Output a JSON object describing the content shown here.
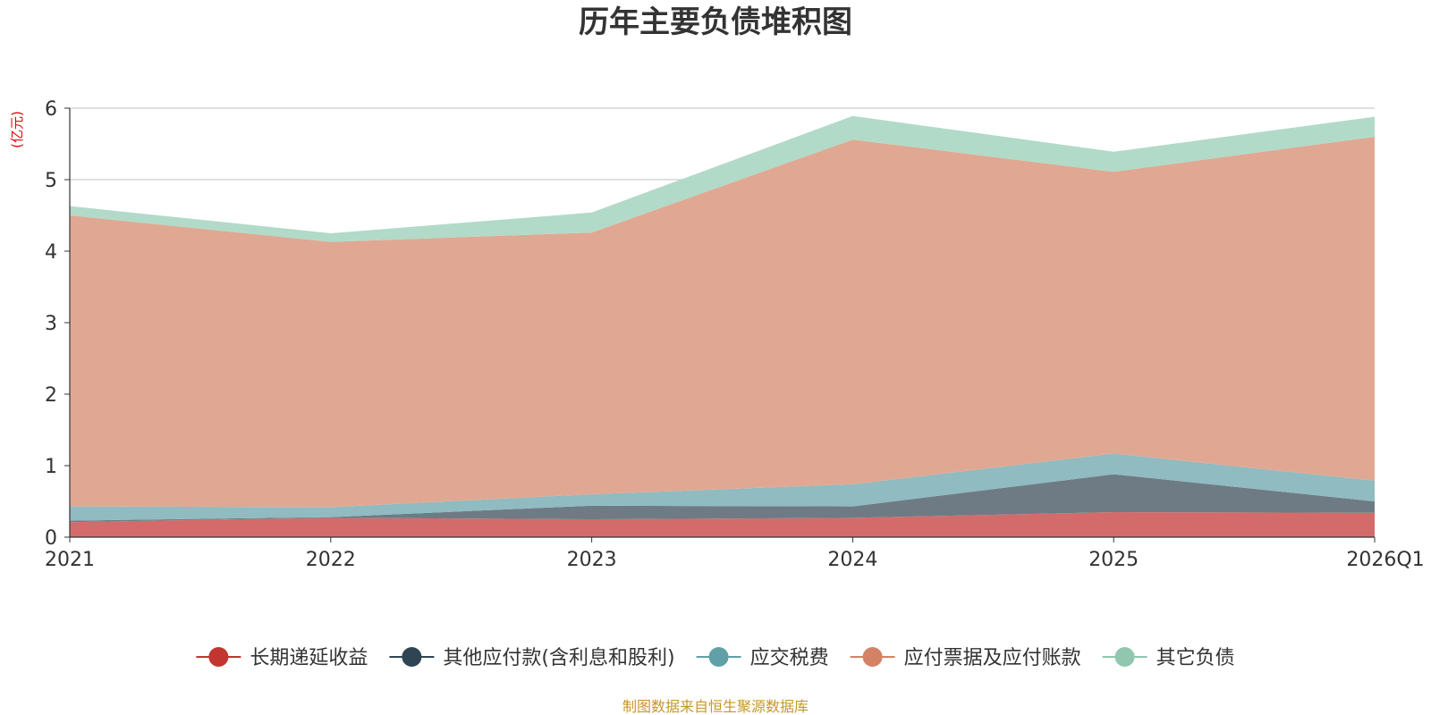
{
  "chart_data": {
    "type": "area",
    "stacked": true,
    "title": "历年主要负债堆积图",
    "unit_label": "(亿元)",
    "categories": [
      "2021",
      "2022",
      "2023",
      "2024",
      "2025",
      "2026Q1"
    ],
    "ylim": [
      0,
      6
    ],
    "yticks": [
      "0",
      "1",
      "2",
      "3",
      "4",
      "5",
      "6"
    ],
    "grid": true,
    "legend_position": "bottom",
    "series": [
      {
        "name": "长期递延收益",
        "color": "#c23531",
        "area_color": "#d46b6b",
        "values": [
          0.21,
          0.27,
          0.25,
          0.27,
          0.35,
          0.34
        ]
      },
      {
        "name": "其他应付款(含利息和股利)",
        "color": "#2f4554",
        "area_color": "#6e7b85",
        "values": [
          0.02,
          0.01,
          0.19,
          0.16,
          0.53,
          0.16
        ]
      },
      {
        "name": "应交税费",
        "color": "#61a0a8",
        "area_color": "#90bbc0",
        "values": [
          0.2,
          0.14,
          0.16,
          0.31,
          0.29,
          0.29
        ]
      },
      {
        "name": "应付票据及应付账款",
        "color": "#d48265",
        "area_color": "#e0a892",
        "values": [
          4.07,
          3.71,
          3.66,
          4.82,
          3.94,
          4.81
        ]
      },
      {
        "name": "其它负债",
        "color": "#91c7ae",
        "area_color": "#b2dac8",
        "values": [
          0.13,
          0.12,
          0.28,
          0.33,
          0.28,
          0.28
        ]
      }
    ],
    "source": "制图数据来自恒生聚源数据库"
  }
}
